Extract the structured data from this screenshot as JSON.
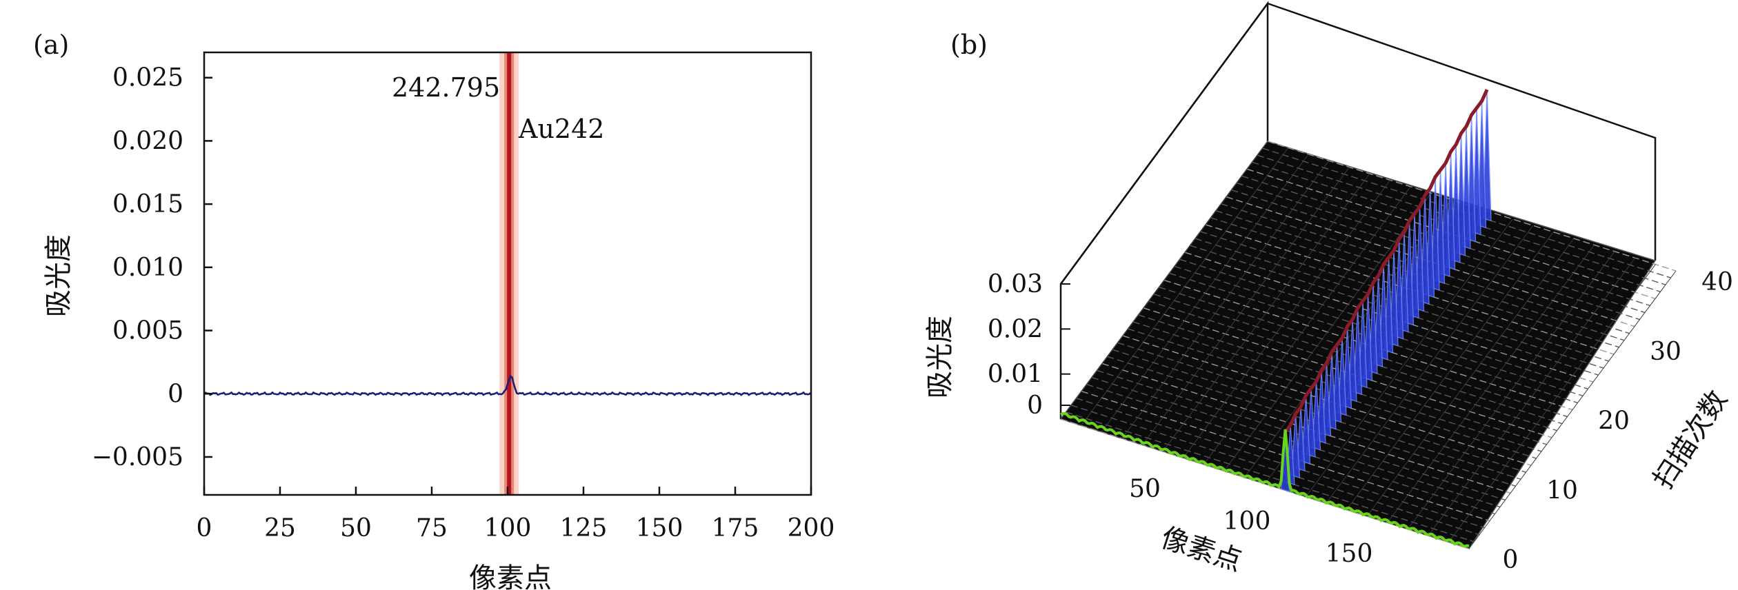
{
  "chart_data": [
    {
      "panel": "(a)",
      "type": "line",
      "title": "",
      "xlabel": "像素点",
      "ylabel": "吸光度",
      "xlim": [
        0,
        200
      ],
      "ylim": [
        -0.008,
        0.027
      ],
      "xticks": [
        0,
        25,
        50,
        75,
        100,
        125,
        150,
        175,
        200
      ],
      "xtick_labels": [
        "0",
        "25",
        "50",
        "75",
        "100",
        "125",
        "150",
        "175",
        "200"
      ],
      "yticks": [
        0.025,
        0.02,
        0.015,
        0.01,
        0.005,
        0,
        -0.005
      ],
      "ytick_labels": [
        "0.025",
        "0.020",
        "0.015",
        "0.010",
        "0.005",
        "0",
        "−0.005"
      ],
      "peak": {
        "x": 101,
        "y": 0.0014
      },
      "marker_line_x": 100.5,
      "annotations": [
        "242.795",
        "Au242"
      ],
      "colors": {
        "line": "#1b1f7a",
        "marker": "#b3131c",
        "band": "#f3b6a6"
      },
      "grid": false
    },
    {
      "panel": "(b)",
      "type": "surface-3d",
      "title": "",
      "xlabel": "像素点",
      "ylabel": "扫描次数",
      "zlabel": "吸光度",
      "xticks": [
        50,
        100,
        150
      ],
      "xtick_labels": [
        "50",
        "100",
        "150"
      ],
      "yticks": [
        0,
        10,
        20,
        30,
        40
      ],
      "ytick_labels": [
        "0",
        "10",
        "20",
        "30",
        "40"
      ],
      "zticks": [
        0,
        0.01,
        0.02,
        0.03
      ],
      "ztick_labels": [
        "0",
        "0.01",
        "0.02",
        "0.03"
      ],
      "peak_pixel": 110,
      "z_range": [
        0,
        0.03
      ],
      "peak_profile_by_scan": [
        0.013,
        0.013,
        0.014,
        0.014,
        0.015,
        0.015,
        0.015,
        0.016,
        0.016,
        0.017,
        0.017,
        0.017,
        0.018,
        0.018,
        0.019,
        0.019,
        0.019,
        0.02,
        0.02,
        0.021,
        0.021,
        0.021,
        0.022,
        0.022,
        0.023,
        0.023,
        0.023,
        0.024,
        0.024,
        0.025,
        0.025,
        0.025,
        0.026,
        0.026,
        0.027,
        0.027,
        0.028,
        0.028,
        0.028,
        0.029
      ],
      "colors": {
        "surface": "#111111",
        "mesh": "#cfcfcf",
        "peak_front": "#2b3fd6",
        "peak_ridge": "#8a1c2a",
        "first_scan": "#6ad41c"
      }
    }
  ]
}
